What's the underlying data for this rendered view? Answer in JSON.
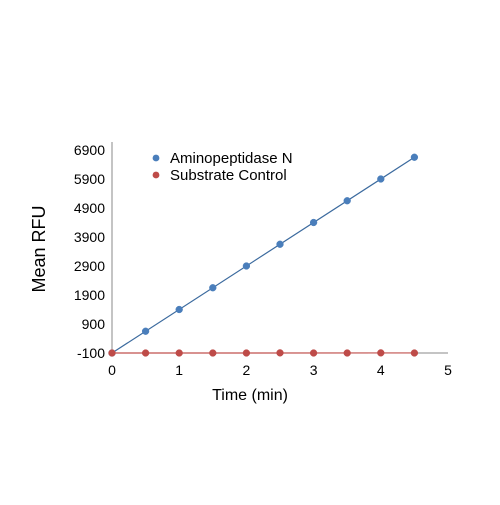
{
  "chart_data": {
    "type": "scatter",
    "xlabel": "Time (min)",
    "ylabel": "Mean RFU",
    "xlim": [
      0,
      5
    ],
    "ylim": [
      -100,
      6900
    ],
    "x_ticks": [
      "0",
      "1",
      "2",
      "3",
      "4",
      "5"
    ],
    "y_ticks": [
      "-100",
      "900",
      "1900",
      "2900",
      "3900",
      "4900",
      "5900",
      "6900"
    ],
    "grid": false,
    "legend_position": "top-left",
    "series": [
      {
        "name": "Aminopeptidase N",
        "color": "#4a7ebb",
        "line_color": "#3b6a9e",
        "marker": "circle",
        "trendline": true,
        "x": [
          0,
          0.5,
          1,
          1.5,
          2,
          2.5,
          3,
          3.5,
          4,
          4.5
        ],
        "y": [
          -100,
          650,
          1400,
          2150,
          2900,
          3650,
          4400,
          5150,
          5900,
          6650
        ]
      },
      {
        "name": "Substrate Control",
        "color": "#be4b48",
        "line_color": "#c0504d",
        "marker": "circle",
        "trendline": true,
        "x": [
          0,
          0.5,
          1,
          1.5,
          2,
          2.5,
          3,
          3.5,
          4,
          4.5
        ],
        "y": [
          -100,
          -100,
          -100,
          -100,
          -100,
          -95,
          -100,
          -100,
          -95,
          -100
        ]
      }
    ]
  }
}
